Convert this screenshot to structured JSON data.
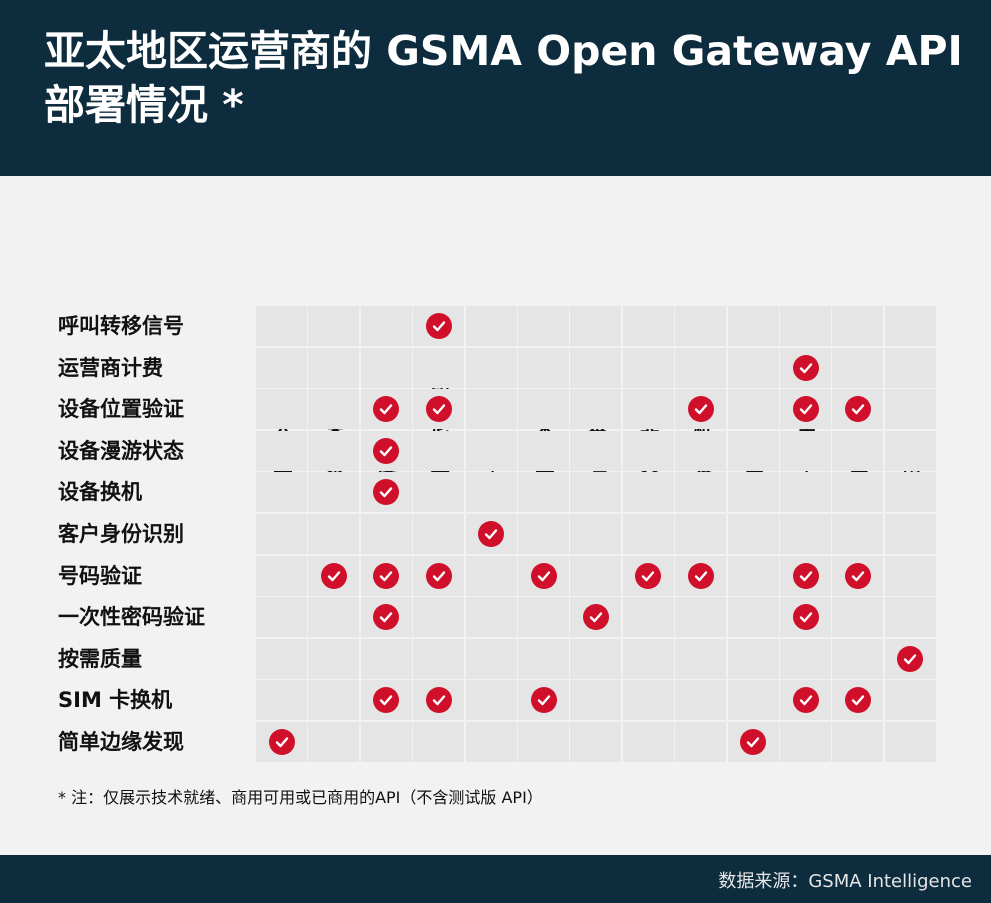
{
  "title": "亚太地区运营商的 GSMA Open Gateway API 部署情况 *",
  "footnote": "* 注：仅展示技术就绪、商用可用或已商用的API（不含测试版 API）",
  "source": "数据来源：GSMA Intelligence",
  "colors": {
    "header_bg": "#0d2c3d",
    "check": "#d0102b",
    "cell": "#e5e5e5",
    "page_bg": "#f2f2f2"
  },
  "chart_data": {
    "type": "table",
    "columns": [
      "澳大利亚",
      "柬埔寨",
      "印度",
      "印度尼西亚",
      "日本",
      "马来西亚",
      "巴基斯坦",
      "菲律宾",
      "新加坡",
      "韩国",
      "斯里兰卡",
      "泰国",
      "越南"
    ],
    "rows": [
      {
        "label": "呼叫转移信号",
        "checks": [
          0,
          0,
          0,
          1,
          0,
          0,
          0,
          0,
          0,
          0,
          0,
          0,
          0
        ]
      },
      {
        "label": "运营商计费",
        "checks": [
          0,
          0,
          0,
          0,
          0,
          0,
          0,
          0,
          0,
          0,
          1,
          0,
          0
        ]
      },
      {
        "label": "设备位置验证",
        "checks": [
          0,
          0,
          1,
          1,
          0,
          0,
          0,
          0,
          1,
          0,
          1,
          1,
          0
        ]
      },
      {
        "label": "设备漫游状态",
        "checks": [
          0,
          0,
          1,
          0,
          0,
          0,
          0,
          0,
          0,
          0,
          0,
          0,
          0
        ]
      },
      {
        "label": "设备换机",
        "checks": [
          0,
          0,
          1,
          0,
          0,
          0,
          0,
          0,
          0,
          0,
          0,
          0,
          0
        ]
      },
      {
        "label": "客户身份识别",
        "checks": [
          0,
          0,
          0,
          0,
          1,
          0,
          0,
          0,
          0,
          0,
          0,
          0,
          0
        ]
      },
      {
        "label": "号码验证",
        "checks": [
          0,
          1,
          1,
          1,
          0,
          1,
          0,
          1,
          1,
          0,
          1,
          1,
          0
        ]
      },
      {
        "label": "一次性密码验证",
        "checks": [
          0,
          0,
          1,
          0,
          0,
          0,
          1,
          0,
          0,
          0,
          1,
          0,
          0
        ]
      },
      {
        "label": "按需质量",
        "checks": [
          0,
          0,
          0,
          0,
          0,
          0,
          0,
          0,
          0,
          0,
          0,
          0,
          1
        ]
      },
      {
        "label": "SIM 卡换机",
        "checks": [
          0,
          0,
          1,
          1,
          0,
          1,
          0,
          0,
          0,
          0,
          1,
          1,
          0
        ]
      },
      {
        "label": "简单边缘发现",
        "checks": [
          1,
          0,
          0,
          0,
          0,
          0,
          0,
          0,
          0,
          1,
          0,
          0,
          0
        ]
      }
    ]
  }
}
